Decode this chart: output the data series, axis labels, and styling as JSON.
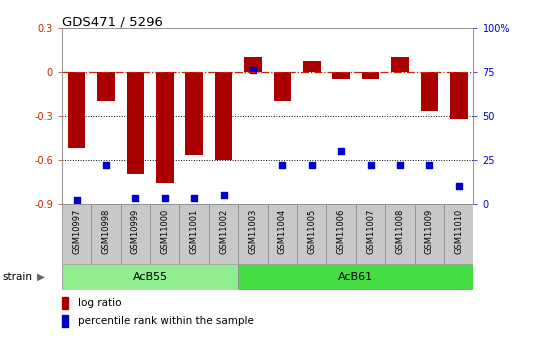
{
  "title": "GDS471 / 5296",
  "samples": [
    "GSM10997",
    "GSM10998",
    "GSM10999",
    "GSM11000",
    "GSM11001",
    "GSM11002",
    "GSM11003",
    "GSM11004",
    "GSM11005",
    "GSM11006",
    "GSM11007",
    "GSM11008",
    "GSM11009",
    "GSM11010"
  ],
  "log_ratio": [
    -0.52,
    -0.2,
    -0.7,
    -0.76,
    -0.57,
    -0.6,
    0.1,
    -0.2,
    0.07,
    -0.05,
    -0.05,
    0.1,
    -0.27,
    -0.32
  ],
  "percentile": [
    2,
    22,
    3,
    3,
    3,
    5,
    76,
    22,
    22,
    30,
    22,
    22,
    22,
    10
  ],
  "groups": [
    {
      "label": "AcB55",
      "start": 0,
      "end": 5,
      "color": "#90EE90"
    },
    {
      "label": "AcB61",
      "start": 6,
      "end": 13,
      "color": "#44DD44"
    }
  ],
  "ylim_left": [
    -0.9,
    0.3
  ],
  "ylim_right": [
    0,
    100
  ],
  "yticks_left": [
    -0.9,
    -0.6,
    -0.3,
    0.0,
    0.3
  ],
  "yticks_right": [
    0,
    25,
    50,
    75,
    100
  ],
  "bar_color": "#AA0000",
  "dot_color": "#0000CC",
  "hline_color": "#CC2200",
  "background_color": "#FFFFFF",
  "plot_bg": "#FFFFFF",
  "title_fontsize": 9.5,
  "tick_fontsize": 7,
  "sample_fontsize": 6,
  "group_fontsize": 8,
  "legend_fontsize": 7.5
}
